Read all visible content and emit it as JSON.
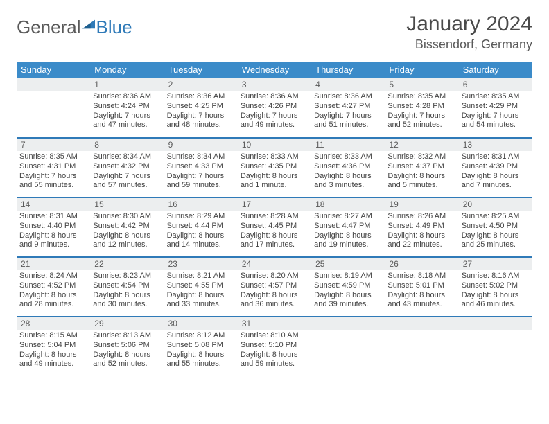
{
  "brand": {
    "part1": "General",
    "part2": "Blue"
  },
  "title": {
    "month": "January 2024",
    "location": "Bissendorf, Germany"
  },
  "colors": {
    "header_bg": "#3b8bc9",
    "header_text": "#ffffff",
    "daynum_bg": "#eceeef",
    "sep_line": "#2f7ab8",
    "body_text": "#444444",
    "logo_blue": "#2f7ab8"
  },
  "weekdays": [
    "Sunday",
    "Monday",
    "Tuesday",
    "Wednesday",
    "Thursday",
    "Friday",
    "Saturday"
  ],
  "weeks": [
    [
      {
        "n": "",
        "l1": "",
        "l2": "",
        "l3": "",
        "l4": ""
      },
      {
        "n": "1",
        "l1": "Sunrise: 8:36 AM",
        "l2": "Sunset: 4:24 PM",
        "l3": "Daylight: 7 hours",
        "l4": "and 47 minutes."
      },
      {
        "n": "2",
        "l1": "Sunrise: 8:36 AM",
        "l2": "Sunset: 4:25 PM",
        "l3": "Daylight: 7 hours",
        "l4": "and 48 minutes."
      },
      {
        "n": "3",
        "l1": "Sunrise: 8:36 AM",
        "l2": "Sunset: 4:26 PM",
        "l3": "Daylight: 7 hours",
        "l4": "and 49 minutes."
      },
      {
        "n": "4",
        "l1": "Sunrise: 8:36 AM",
        "l2": "Sunset: 4:27 PM",
        "l3": "Daylight: 7 hours",
        "l4": "and 51 minutes."
      },
      {
        "n": "5",
        "l1": "Sunrise: 8:35 AM",
        "l2": "Sunset: 4:28 PM",
        "l3": "Daylight: 7 hours",
        "l4": "and 52 minutes."
      },
      {
        "n": "6",
        "l1": "Sunrise: 8:35 AM",
        "l2": "Sunset: 4:29 PM",
        "l3": "Daylight: 7 hours",
        "l4": "and 54 minutes."
      }
    ],
    [
      {
        "n": "7",
        "l1": "Sunrise: 8:35 AM",
        "l2": "Sunset: 4:31 PM",
        "l3": "Daylight: 7 hours",
        "l4": "and 55 minutes."
      },
      {
        "n": "8",
        "l1": "Sunrise: 8:34 AM",
        "l2": "Sunset: 4:32 PM",
        "l3": "Daylight: 7 hours",
        "l4": "and 57 minutes."
      },
      {
        "n": "9",
        "l1": "Sunrise: 8:34 AM",
        "l2": "Sunset: 4:33 PM",
        "l3": "Daylight: 7 hours",
        "l4": "and 59 minutes."
      },
      {
        "n": "10",
        "l1": "Sunrise: 8:33 AM",
        "l2": "Sunset: 4:35 PM",
        "l3": "Daylight: 8 hours",
        "l4": "and 1 minute."
      },
      {
        "n": "11",
        "l1": "Sunrise: 8:33 AM",
        "l2": "Sunset: 4:36 PM",
        "l3": "Daylight: 8 hours",
        "l4": "and 3 minutes."
      },
      {
        "n": "12",
        "l1": "Sunrise: 8:32 AM",
        "l2": "Sunset: 4:37 PM",
        "l3": "Daylight: 8 hours",
        "l4": "and 5 minutes."
      },
      {
        "n": "13",
        "l1": "Sunrise: 8:31 AM",
        "l2": "Sunset: 4:39 PM",
        "l3": "Daylight: 8 hours",
        "l4": "and 7 minutes."
      }
    ],
    [
      {
        "n": "14",
        "l1": "Sunrise: 8:31 AM",
        "l2": "Sunset: 4:40 PM",
        "l3": "Daylight: 8 hours",
        "l4": "and 9 minutes."
      },
      {
        "n": "15",
        "l1": "Sunrise: 8:30 AM",
        "l2": "Sunset: 4:42 PM",
        "l3": "Daylight: 8 hours",
        "l4": "and 12 minutes."
      },
      {
        "n": "16",
        "l1": "Sunrise: 8:29 AM",
        "l2": "Sunset: 4:44 PM",
        "l3": "Daylight: 8 hours",
        "l4": "and 14 minutes."
      },
      {
        "n": "17",
        "l1": "Sunrise: 8:28 AM",
        "l2": "Sunset: 4:45 PM",
        "l3": "Daylight: 8 hours",
        "l4": "and 17 minutes."
      },
      {
        "n": "18",
        "l1": "Sunrise: 8:27 AM",
        "l2": "Sunset: 4:47 PM",
        "l3": "Daylight: 8 hours",
        "l4": "and 19 minutes."
      },
      {
        "n": "19",
        "l1": "Sunrise: 8:26 AM",
        "l2": "Sunset: 4:49 PM",
        "l3": "Daylight: 8 hours",
        "l4": "and 22 minutes."
      },
      {
        "n": "20",
        "l1": "Sunrise: 8:25 AM",
        "l2": "Sunset: 4:50 PM",
        "l3": "Daylight: 8 hours",
        "l4": "and 25 minutes."
      }
    ],
    [
      {
        "n": "21",
        "l1": "Sunrise: 8:24 AM",
        "l2": "Sunset: 4:52 PM",
        "l3": "Daylight: 8 hours",
        "l4": "and 28 minutes."
      },
      {
        "n": "22",
        "l1": "Sunrise: 8:23 AM",
        "l2": "Sunset: 4:54 PM",
        "l3": "Daylight: 8 hours",
        "l4": "and 30 minutes."
      },
      {
        "n": "23",
        "l1": "Sunrise: 8:21 AM",
        "l2": "Sunset: 4:55 PM",
        "l3": "Daylight: 8 hours",
        "l4": "and 33 minutes."
      },
      {
        "n": "24",
        "l1": "Sunrise: 8:20 AM",
        "l2": "Sunset: 4:57 PM",
        "l3": "Daylight: 8 hours",
        "l4": "and 36 minutes."
      },
      {
        "n": "25",
        "l1": "Sunrise: 8:19 AM",
        "l2": "Sunset: 4:59 PM",
        "l3": "Daylight: 8 hours",
        "l4": "and 39 minutes."
      },
      {
        "n": "26",
        "l1": "Sunrise: 8:18 AM",
        "l2": "Sunset: 5:01 PM",
        "l3": "Daylight: 8 hours",
        "l4": "and 43 minutes."
      },
      {
        "n": "27",
        "l1": "Sunrise: 8:16 AM",
        "l2": "Sunset: 5:02 PM",
        "l3": "Daylight: 8 hours",
        "l4": "and 46 minutes."
      }
    ],
    [
      {
        "n": "28",
        "l1": "Sunrise: 8:15 AM",
        "l2": "Sunset: 5:04 PM",
        "l3": "Daylight: 8 hours",
        "l4": "and 49 minutes."
      },
      {
        "n": "29",
        "l1": "Sunrise: 8:13 AM",
        "l2": "Sunset: 5:06 PM",
        "l3": "Daylight: 8 hours",
        "l4": "and 52 minutes."
      },
      {
        "n": "30",
        "l1": "Sunrise: 8:12 AM",
        "l2": "Sunset: 5:08 PM",
        "l3": "Daylight: 8 hours",
        "l4": "and 55 minutes."
      },
      {
        "n": "31",
        "l1": "Sunrise: 8:10 AM",
        "l2": "Sunset: 5:10 PM",
        "l3": "Daylight: 8 hours",
        "l4": "and 59 minutes."
      },
      {
        "n": "",
        "l1": "",
        "l2": "",
        "l3": "",
        "l4": ""
      },
      {
        "n": "",
        "l1": "",
        "l2": "",
        "l3": "",
        "l4": ""
      },
      {
        "n": "",
        "l1": "",
        "l2": "",
        "l3": "",
        "l4": ""
      }
    ]
  ]
}
